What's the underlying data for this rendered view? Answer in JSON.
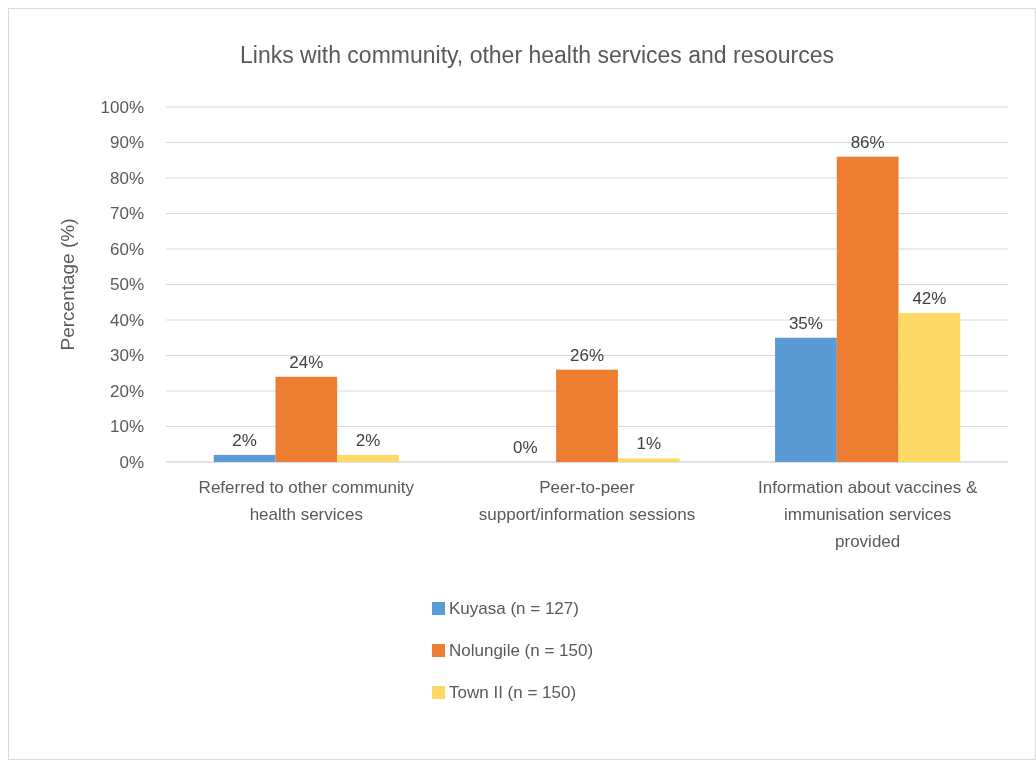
{
  "chart_data": {
    "type": "bar",
    "title": "Links with community, other health services and resources",
    "ylabel": "Percentage (%)",
    "categories": [
      "Referred to other community health services",
      "Peer-to-peer support/information sessions",
      "Information about vaccines & immunisation services provided"
    ],
    "series": [
      {
        "name": "Kuyasa (n = 127)",
        "color": "#5b9bd5",
        "values": [
          2,
          0,
          35
        ]
      },
      {
        "name": "Nolungile (n = 150)",
        "color": "#ed7d31",
        "values": [
          24,
          26,
          86
        ]
      },
      {
        "name": "Town II (n = 150)",
        "color": "#ffd966",
        "values": [
          2,
          1,
          42
        ]
      }
    ],
    "ylim": [
      0,
      100
    ],
    "yticks": [
      {
        "value": 0,
        "label": "0%"
      },
      {
        "value": 10,
        "label": "10%"
      },
      {
        "value": 20,
        "label": "20%"
      },
      {
        "value": 30,
        "label": "30%"
      },
      {
        "value": 40,
        "label": "40%"
      },
      {
        "value": 50,
        "label": "50%"
      },
      {
        "value": 60,
        "label": "60%"
      },
      {
        "value": 70,
        "label": "70%"
      },
      {
        "value": 80,
        "label": "80%"
      },
      {
        "value": 90,
        "label": "90%"
      },
      {
        "value": 100,
        "label": "100%"
      }
    ],
    "value_labels": [
      [
        "2%",
        "0%",
        "35%"
      ],
      [
        "24%",
        "26%",
        "86%"
      ],
      [
        "2%",
        "1%",
        "42%"
      ]
    ],
    "grid": "y",
    "legend": "bottom"
  }
}
